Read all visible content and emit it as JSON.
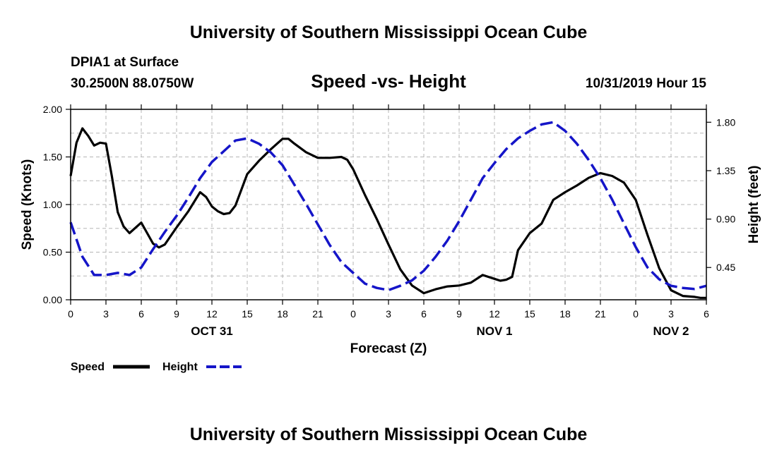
{
  "page": {
    "top_title": "University of Southern Mississippi Ocean Cube",
    "bottom_title": "University of Southern Mississippi Ocean Cube",
    "station": "DPIA1 at Surface",
    "coords": "30.2500N 88.0750W",
    "plot_title": "Speed -vs- Height",
    "timestamp": "10/31/2019 Hour 15"
  },
  "chart_data": {
    "type": "line",
    "title": "Speed -vs- Height",
    "xlabel": "Forecast (Z)",
    "ylabel_left": "Speed (Knots)",
    "ylabel_right": "Height (feet)",
    "xlim": [
      0,
      54
    ],
    "ylim_left": [
      0,
      2.0
    ],
    "ylim_right": [
      0.15,
      1.92
    ],
    "grid": true,
    "legend_position": "bottom-left",
    "x_ticks": [
      0,
      3,
      6,
      9,
      12,
      15,
      18,
      21,
      24,
      27,
      30,
      33,
      36,
      39,
      42,
      45,
      48,
      51,
      54
    ],
    "x_tick_labels": [
      "0",
      "3",
      "6",
      "9",
      "12",
      "15",
      "18",
      "21",
      "0",
      "3",
      "6",
      "9",
      "12",
      "15",
      "18",
      "21",
      "0",
      "3",
      "6"
    ],
    "y_left_ticks": [
      0,
      0.5,
      1.0,
      1.5,
      2.0
    ],
    "y_left_tick_labels": [
      "0.00",
      "0.50",
      "1.00",
      "1.50",
      "2.00"
    ],
    "y_right_ticks": [
      0.45,
      0.9,
      1.35,
      1.8
    ],
    "y_right_tick_labels": [
      "0.45",
      "0.90",
      "1.35",
      "1.80"
    ],
    "date_labels": [
      {
        "label": "OCT 31",
        "x": 12
      },
      {
        "label": "NOV 1",
        "x": 36
      },
      {
        "label": "NOV 2",
        "x": 51
      }
    ],
    "series": [
      {
        "name": "Speed",
        "axis": "left",
        "color": "#000000",
        "style": "solid",
        "x": [
          0,
          0.5,
          1,
          1.5,
          2,
          2.5,
          3,
          3.5,
          4,
          4.5,
          5,
          6,
          7,
          7.5,
          8,
          9,
          10,
          11,
          11.5,
          12,
          12.5,
          13,
          13.5,
          14,
          15,
          16,
          17,
          18,
          18.5,
          19,
          20,
          21,
          22,
          23,
          23.5,
          24,
          25,
          26,
          27,
          28,
          29,
          30,
          31,
          32,
          33,
          34,
          35,
          36,
          36.5,
          37,
          37.5,
          38,
          39,
          40,
          41,
          42,
          43,
          44,
          45,
          46,
          47,
          48,
          49,
          50,
          51,
          52,
          53,
          53.5,
          54
        ],
        "values": [
          1.3,
          1.65,
          1.8,
          1.72,
          1.62,
          1.65,
          1.64,
          1.3,
          0.92,
          0.77,
          0.7,
          0.81,
          0.59,
          0.55,
          0.58,
          0.76,
          0.93,
          1.13,
          1.08,
          0.98,
          0.93,
          0.9,
          0.91,
          0.99,
          1.32,
          1.46,
          1.58,
          1.69,
          1.69,
          1.64,
          1.55,
          1.49,
          1.49,
          1.5,
          1.47,
          1.37,
          1.1,
          0.85,
          0.58,
          0.32,
          0.15,
          0.07,
          0.11,
          0.14,
          0.15,
          0.18,
          0.26,
          0.22,
          0.2,
          0.21,
          0.24,
          0.52,
          0.7,
          0.8,
          1.05,
          1.13,
          1.2,
          1.28,
          1.33,
          1.3,
          1.23,
          1.05,
          0.68,
          0.33,
          0.1,
          0.04,
          0.03,
          0.02,
          0.02
        ],
        "values_note": "estimated from plot"
      },
      {
        "name": "Height",
        "axis": "right",
        "color": "#1515c8",
        "style": "dashed",
        "x": [
          0,
          1,
          2,
          3,
          4,
          5,
          6,
          7,
          8,
          9,
          10,
          11,
          12,
          13,
          14,
          15,
          16,
          17,
          18,
          19,
          20,
          21,
          22,
          23,
          24,
          25,
          26,
          27,
          28,
          29,
          30,
          31,
          32,
          33,
          34,
          35,
          36,
          37,
          38,
          39,
          40,
          41,
          42,
          43,
          44,
          45,
          46,
          47,
          48,
          49,
          50,
          51,
          52,
          53,
          54
        ],
        "values": [
          0.87,
          0.55,
          0.38,
          0.38,
          0.4,
          0.38,
          0.45,
          0.62,
          0.78,
          0.93,
          1.1,
          1.28,
          1.43,
          1.53,
          1.63,
          1.65,
          1.6,
          1.52,
          1.4,
          1.22,
          1.04,
          0.85,
          0.66,
          0.5,
          0.4,
          0.3,
          0.26,
          0.24,
          0.28,
          0.33,
          0.42,
          0.55,
          0.7,
          0.88,
          1.08,
          1.28,
          1.42,
          1.55,
          1.65,
          1.72,
          1.78,
          1.8,
          1.72,
          1.6,
          1.45,
          1.28,
          1.08,
          0.86,
          0.64,
          0.45,
          0.34,
          0.28,
          0.26,
          0.25,
          0.28
        ],
        "values_note": "estimated from plot"
      }
    ]
  }
}
